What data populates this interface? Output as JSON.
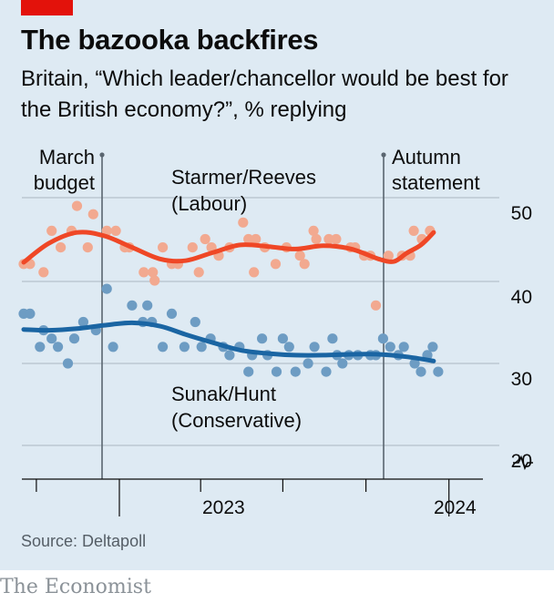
{
  "header": {
    "title": "The bazooka backfires",
    "subtitle": "Britain, “Which leader/chancellor would be best for the British economy?”, % replying"
  },
  "footer": {
    "source": "Source: Deltapoll",
    "brand": "The Economist"
  },
  "colors": {
    "background": "#deeaf3",
    "labour_points": "#f2a990",
    "labour_line": "#ef4726",
    "conservative_points": "#6d9cc3",
    "conservative_line": "#1a65a3",
    "brand_red": "#e3120b"
  },
  "chart_data": {
    "type": "scatter",
    "title": "The bazooka backfires",
    "subtitle": "Britain, “Which leader/chancellor would be best for the British economy?”, % replying",
    "x_axis": {
      "range": [
        "2022-09-15",
        "2024-02-20"
      ],
      "tick_labels": [
        "2023",
        "2024"
      ]
    },
    "y_axis": {
      "range": [
        17,
        53
      ],
      "ticks": [
        20,
        30,
        40,
        50
      ],
      "axis_break_symbol": true,
      "grid": true,
      "position": "right"
    },
    "annotations": [
      {
        "text_lines": [
          "March",
          "budget"
        ],
        "date": "2023-03-15"
      },
      {
        "text_lines": [
          "Autumn",
          "statement"
        ],
        "date": "2023-11-22"
      }
    ],
    "series": [
      {
        "name": "Starmer/Reeves",
        "label_lines": [
          "Starmer/Reeves",
          "(Labour)"
        ],
        "type": "scatter+trend",
        "points": [
          [
            "2022-09-17",
            42
          ],
          [
            "2022-09-24",
            42
          ],
          [
            "2022-10-09",
            41
          ],
          [
            "2022-10-18",
            46
          ],
          [
            "2022-10-28",
            44
          ],
          [
            "2022-11-09",
            46
          ],
          [
            "2022-11-15",
            49
          ],
          [
            "2022-11-27",
            44
          ],
          [
            "2022-12-03",
            48
          ],
          [
            "2022-12-18",
            46
          ],
          [
            "2022-12-28",
            46
          ],
          [
            "2023-01-07",
            44
          ],
          [
            "2023-01-12",
            44
          ],
          [
            "2023-01-28",
            41
          ],
          [
            "2023-02-07",
            41
          ],
          [
            "2023-02-09",
            40
          ],
          [
            "2023-02-18",
            44
          ],
          [
            "2023-02-28",
            42
          ],
          [
            "2023-03-07",
            42
          ],
          [
            "2023-03-23",
            44
          ],
          [
            "2023-03-30",
            41
          ],
          [
            "2023-04-06",
            45
          ],
          [
            "2023-04-13",
            44
          ],
          [
            "2023-04-21",
            43
          ],
          [
            "2023-05-03",
            44
          ],
          [
            "2023-05-18",
            47
          ],
          [
            "2023-05-24",
            45
          ],
          [
            "2023-05-30",
            41
          ],
          [
            "2023-06-01",
            45
          ],
          [
            "2023-06-11",
            44
          ],
          [
            "2023-06-23",
            42
          ],
          [
            "2023-07-05",
            44
          ],
          [
            "2023-07-20",
            43
          ],
          [
            "2023-07-25",
            42
          ],
          [
            "2023-08-04",
            46
          ],
          [
            "2023-08-07",
            45
          ],
          [
            "2023-08-21",
            45
          ],
          [
            "2023-08-29",
            45
          ],
          [
            "2023-09-14",
            44
          ],
          [
            "2023-09-19",
            44
          ],
          [
            "2023-09-29",
            43
          ],
          [
            "2023-10-06",
            43
          ],
          [
            "2023-10-12",
            37
          ],
          [
            "2023-10-26",
            43
          ],
          [
            "2023-11-10",
            43
          ],
          [
            "2023-11-19",
            43
          ],
          [
            "2023-11-23",
            46
          ],
          [
            "2023-12-02",
            45
          ],
          [
            "2023-12-11",
            46
          ]
        ],
        "trend": [
          [
            "2022-09-17",
            42.2
          ],
          [
            "2022-10-15",
            44.5
          ],
          [
            "2022-11-15",
            45.8
          ],
          [
            "2022-12-15",
            45.4
          ],
          [
            "2023-01-15",
            44.0
          ],
          [
            "2023-02-15",
            42.6
          ],
          [
            "2023-03-15",
            42.4
          ],
          [
            "2023-04-15",
            43.4
          ],
          [
            "2023-05-15",
            44.3
          ],
          [
            "2023-06-15",
            44.1
          ],
          [
            "2023-07-15",
            43.8
          ],
          [
            "2023-08-15",
            44.2
          ],
          [
            "2023-09-15",
            43.8
          ],
          [
            "2023-10-15",
            42.6
          ],
          [
            "2023-11-01",
            42.3
          ],
          [
            "2023-11-15",
            43.3
          ],
          [
            "2023-12-01",
            44.3
          ],
          [
            "2023-12-15",
            45.8
          ]
        ]
      },
      {
        "name": "Sunak/Hunt",
        "label_lines": [
          "Sunak/Hunt",
          "(Conservative)"
        ],
        "type": "scatter+trend",
        "points": [
          [
            "2022-09-17",
            36
          ],
          [
            "2022-09-24",
            36
          ],
          [
            "2022-10-05",
            32
          ],
          [
            "2022-10-09",
            34
          ],
          [
            "2022-10-18",
            33
          ],
          [
            "2022-10-25",
            32
          ],
          [
            "2022-11-05",
            30
          ],
          [
            "2022-11-12",
            33
          ],
          [
            "2022-11-22",
            35
          ],
          [
            "2022-12-06",
            34
          ],
          [
            "2022-12-18",
            39
          ],
          [
            "2022-12-25",
            32
          ],
          [
            "2023-01-15",
            37
          ],
          [
            "2023-01-27",
            35
          ],
          [
            "2023-02-01",
            37
          ],
          [
            "2023-02-06",
            35
          ],
          [
            "2023-02-18",
            32
          ],
          [
            "2023-02-28",
            36
          ],
          [
            "2023-03-14",
            32
          ],
          [
            "2023-03-26",
            35
          ],
          [
            "2023-04-02",
            32
          ],
          [
            "2023-04-12",
            33
          ],
          [
            "2023-04-26",
            32
          ],
          [
            "2023-05-03",
            31
          ],
          [
            "2023-05-14",
            32
          ],
          [
            "2023-05-24",
            29
          ],
          [
            "2023-05-28",
            31
          ],
          [
            "2023-06-08",
            33
          ],
          [
            "2023-06-14",
            31
          ],
          [
            "2023-06-24",
            29
          ],
          [
            "2023-07-01",
            33
          ],
          [
            "2023-07-08",
            32
          ],
          [
            "2023-07-15",
            29
          ],
          [
            "2023-07-29",
            30
          ],
          [
            "2023-08-05",
            32
          ],
          [
            "2023-08-18",
            29
          ],
          [
            "2023-08-25",
            33
          ],
          [
            "2023-08-30",
            31
          ],
          [
            "2023-09-05",
            30
          ],
          [
            "2023-09-12",
            31
          ],
          [
            "2023-09-22",
            31
          ],
          [
            "2023-10-06",
            31
          ],
          [
            "2023-10-12",
            31
          ],
          [
            "2023-10-20",
            33
          ],
          [
            "2023-10-28",
            32
          ],
          [
            "2023-11-06",
            31
          ],
          [
            "2023-11-12",
            32
          ],
          [
            "2023-11-24",
            30
          ],
          [
            "2023-12-01",
            29
          ],
          [
            "2023-12-08",
            31
          ],
          [
            "2023-12-14",
            32
          ],
          [
            "2023-12-20",
            29
          ]
        ],
        "trend": [
          [
            "2022-09-17",
            34.1
          ],
          [
            "2022-10-15",
            34.0
          ],
          [
            "2022-11-15",
            34.2
          ],
          [
            "2022-12-15",
            34.6
          ],
          [
            "2023-01-15",
            34.9
          ],
          [
            "2023-02-15",
            34.5
          ],
          [
            "2023-03-15",
            33.5
          ],
          [
            "2023-04-15",
            32.5
          ],
          [
            "2023-05-15",
            31.6
          ],
          [
            "2023-06-15",
            31.2
          ],
          [
            "2023-07-15",
            31.0
          ],
          [
            "2023-08-15",
            31.0
          ],
          [
            "2023-09-15",
            31.1
          ],
          [
            "2023-10-15",
            31.1
          ],
          [
            "2023-11-15",
            30.8
          ],
          [
            "2023-12-15",
            30.3
          ]
        ]
      }
    ]
  }
}
